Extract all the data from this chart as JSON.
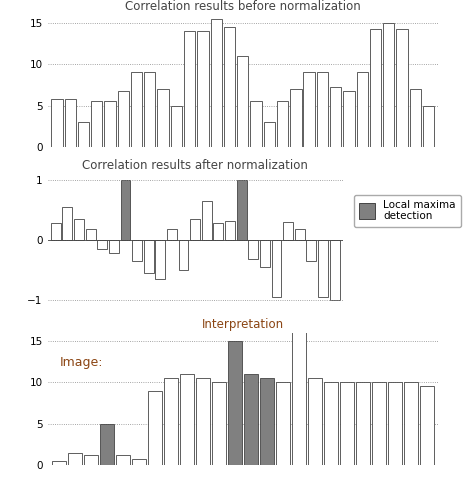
{
  "title1": "Correlation results before normalization",
  "title2": "Correlation results after normalization",
  "title3": "Interpretation",
  "label3": "Image:",
  "bars1": [
    5.8,
    5.8,
    3.0,
    5.5,
    5.5,
    6.8,
    9.0,
    9.0,
    7.0,
    5.0,
    14.0,
    14.0,
    15.5,
    14.5,
    11.0,
    5.5,
    3.0,
    5.5,
    7.0,
    9.0,
    9.0,
    7.2,
    6.8,
    9.0,
    14.2,
    15.0,
    14.2,
    7.0,
    5.0
  ],
  "ylim1": [
    0,
    16
  ],
  "yticks1": [
    0,
    5,
    10,
    15
  ],
  "bars2": [
    0.28,
    0.55,
    0.35,
    0.18,
    -0.15,
    -0.22,
    1.0,
    -0.35,
    -0.55,
    -0.65,
    0.18,
    -0.5,
    0.35,
    0.65,
    0.28,
    0.32,
    1.0,
    -0.32,
    -0.45,
    -0.95,
    0.3,
    0.18,
    -0.35,
    -0.95,
    -1.0
  ],
  "bars2_gray": [
    6,
    16
  ],
  "ylim2": [
    -1.1,
    1.1
  ],
  "yticks2": [
    -1.0,
    0,
    1.0
  ],
  "bars3": [
    0.5,
    1.5,
    1.2,
    5.0,
    1.2,
    0.8,
    9.0,
    10.5,
    11.0,
    10.5,
    10.0,
    15.0,
    11.0,
    10.5,
    10.0,
    17.0,
    10.5,
    10.0,
    10.0,
    10.0,
    10.0,
    10.0,
    10.0,
    9.5
  ],
  "bars3_gray_idx": [
    3,
    11,
    12,
    13
  ],
  "ylim3": [
    0,
    16
  ],
  "yticks3": [
    0,
    5,
    10,
    15
  ],
  "text_color_red": "#8B4513",
  "bar_color_white": "#ffffff",
  "bar_color_gray": "#808080",
  "edge_color": "#444444",
  "bg_color": "#ffffff",
  "grid_color": "#888888",
  "title_color_dark": "#444444",
  "title_color_red": "#8B4513",
  "legend_label": "Local maxima\ndetection"
}
